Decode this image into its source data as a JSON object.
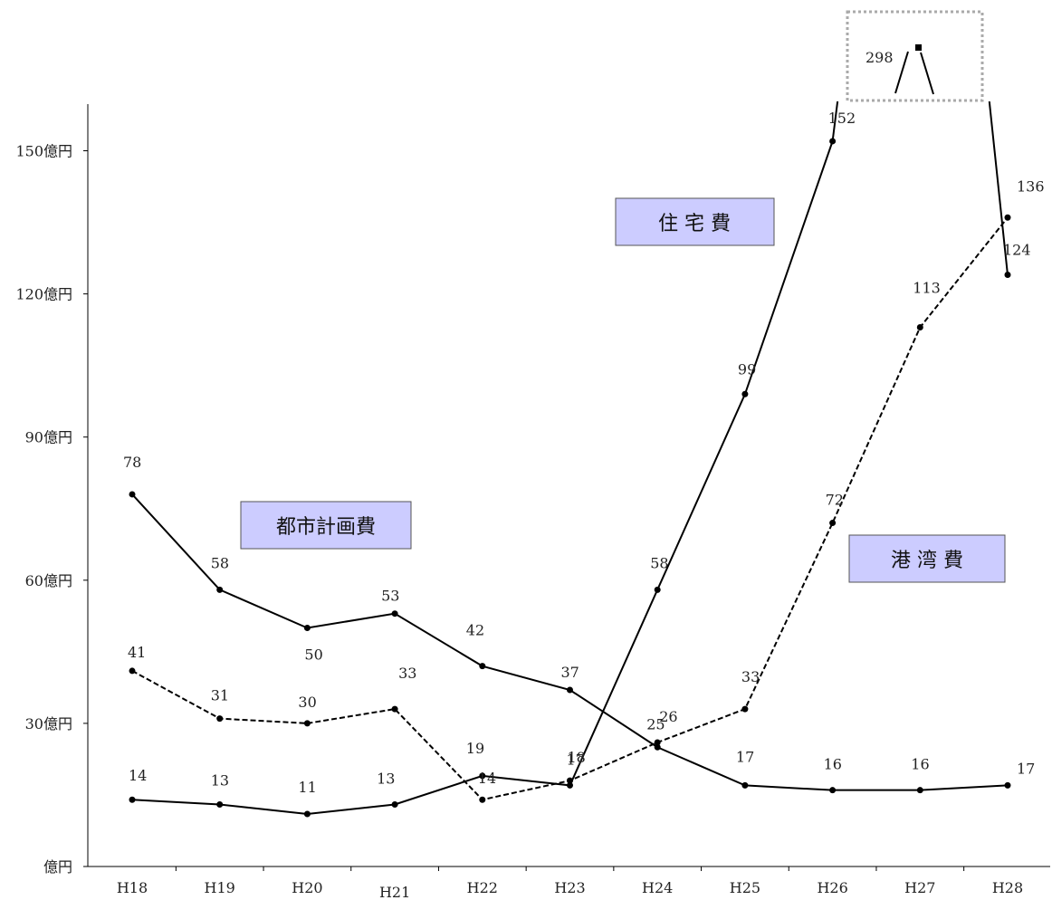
{
  "chart_data": {
    "type": "line",
    "categories": [
      "H18",
      "H19",
      "H20",
      "H21",
      "H22",
      "H23",
      "H24",
      "H25",
      "H26",
      "H27",
      "H28"
    ],
    "y_tick_labels": [
      "億円",
      "30億円",
      "60億円",
      "90億円",
      "120億円",
      "150億円"
    ],
    "y_tick_values": [
      0,
      30,
      60,
      90,
      120,
      150
    ],
    "ylim": [
      0,
      160
    ],
    "series": [
      {
        "name": "都市計画費",
        "style": "solid",
        "values": [
          78,
          58,
          50,
          53,
          42,
          37,
          25,
          17,
          16,
          16,
          17
        ]
      },
      {
        "name": "港湾費",
        "style": "dashed",
        "values": [
          41,
          31,
          30,
          33,
          14,
          18,
          26,
          33,
          72,
          113,
          136
        ]
      },
      {
        "name": "住宅費",
        "style": "solid",
        "values": [
          14,
          13,
          11,
          13,
          19,
          17,
          58,
          99,
          152,
          298,
          124
        ]
      }
    ],
    "legend_labels": [
      "都市計画費",
      "港 湾 費",
      "住 宅 費"
    ],
    "data_labels": [
      "78",
      "58",
      "50",
      "53",
      "42",
      "37",
      "25",
      "17",
      "16",
      "16",
      "17",
      "41",
      "31",
      "30",
      "33",
      "14",
      "18",
      "26",
      "33",
      "72",
      "113",
      "136",
      "14",
      "13",
      "11",
      "13",
      "19",
      "17",
      "58",
      "99",
      "152",
      "298",
      "124"
    ],
    "grid": false,
    "axis_break": "住宅費 H27 value 298 shown in a dotted inset above the plot area",
    "colors": {
      "line": "#000000",
      "legend_fill": "#ccccff",
      "inset_border": "#aaaaaa"
    }
  }
}
